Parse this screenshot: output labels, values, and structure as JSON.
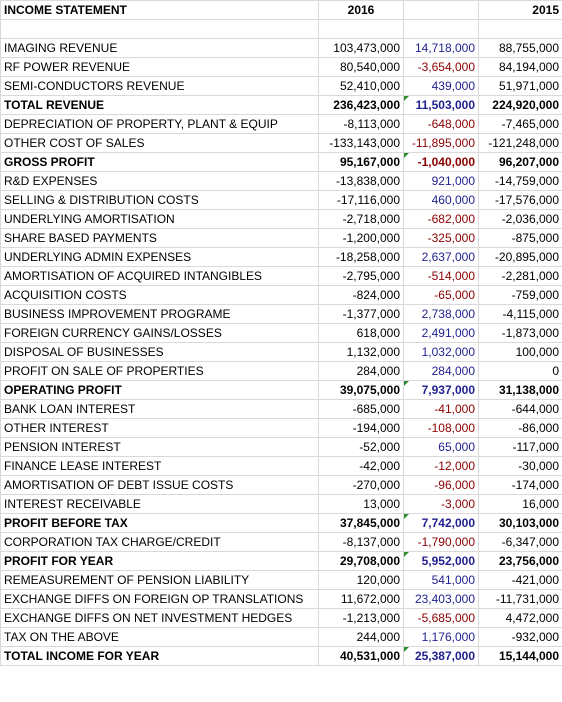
{
  "header": {
    "title": "INCOME STATEMENT",
    "col_2016": "2016",
    "col_var": "",
    "col_2015": "2015"
  },
  "rows": [
    {
      "label": "",
      "v2016": "",
      "var": "",
      "v2015": "",
      "bold": false,
      "sign": ""
    },
    {
      "label": "IMAGING REVENUE",
      "v2016": "103,473,000",
      "var": "14,718,000",
      "v2015": "88,755,000",
      "bold": false,
      "sign": "pos"
    },
    {
      "label": "RF POWER REVENUE",
      "v2016": "80,540,000",
      "var": "-3,654,000",
      "v2015": "84,194,000",
      "bold": false,
      "sign": "neg"
    },
    {
      "label": "SEMI-CONDUCTORS REVENUE",
      "v2016": "52,410,000",
      "var": "439,000",
      "v2015": "51,971,000",
      "bold": false,
      "sign": "pos"
    },
    {
      "label": "TOTAL REVENUE",
      "v2016": "236,423,000",
      "var": "11,503,000",
      "v2015": "224,920,000",
      "bold": true,
      "sign": "pos",
      "flag": true
    },
    {
      "label": "DEPRECIATION OF PROPERTY, PLANT & EQUIP",
      "v2016": "-8,113,000",
      "var": "-648,000",
      "v2015": "-7,465,000",
      "bold": false,
      "sign": "neg"
    },
    {
      "label": "OTHER COST OF SALES",
      "v2016": "-133,143,000",
      "var": "-11,895,000",
      "v2015": "-121,248,000",
      "bold": false,
      "sign": "neg"
    },
    {
      "label": "GROSS PROFIT",
      "v2016": "95,167,000",
      "var": "-1,040,000",
      "v2015": "96,207,000",
      "bold": true,
      "sign": "neg",
      "flag": true
    },
    {
      "label": "R&D EXPENSES",
      "v2016": "-13,838,000",
      "var": "921,000",
      "v2015": "-14,759,000",
      "bold": false,
      "sign": "pos"
    },
    {
      "label": "SELLING & DISTRIBUTION COSTS",
      "v2016": "-17,116,000",
      "var": "460,000",
      "v2015": "-17,576,000",
      "bold": false,
      "sign": "pos"
    },
    {
      "label": "UNDERLYING AMORTISATION",
      "v2016": "-2,718,000",
      "var": "-682,000",
      "v2015": "-2,036,000",
      "bold": false,
      "sign": "neg"
    },
    {
      "label": "SHARE BASED PAYMENTS",
      "v2016": "-1,200,000",
      "var": "-325,000",
      "v2015": "-875,000",
      "bold": false,
      "sign": "neg"
    },
    {
      "label": "UNDERLYING ADMIN EXPENSES",
      "v2016": "-18,258,000",
      "var": "2,637,000",
      "v2015": "-20,895,000",
      "bold": false,
      "sign": "pos"
    },
    {
      "label": "AMORTISATION OF ACQUIRED INTANGIBLES",
      "v2016": "-2,795,000",
      "var": "-514,000",
      "v2015": "-2,281,000",
      "bold": false,
      "sign": "neg"
    },
    {
      "label": "ACQUISITION COSTS",
      "v2016": "-824,000",
      "var": "-65,000",
      "v2015": "-759,000",
      "bold": false,
      "sign": "neg"
    },
    {
      "label": "BUSINESS IMPROVEMENT PROGRAME",
      "v2016": "-1,377,000",
      "var": "2,738,000",
      "v2015": "-4,115,000",
      "bold": false,
      "sign": "pos"
    },
    {
      "label": "FOREIGN CURRENCY GAINS/LOSSES",
      "v2016": "618,000",
      "var": "2,491,000",
      "v2015": "-1,873,000",
      "bold": false,
      "sign": "pos"
    },
    {
      "label": "DISPOSAL OF BUSINESSES",
      "v2016": "1,132,000",
      "var": "1,032,000",
      "v2015": "100,000",
      "bold": false,
      "sign": "pos"
    },
    {
      "label": "PROFIT ON SALE OF PROPERTIES",
      "v2016": "284,000",
      "var": "284,000",
      "v2015": "0",
      "bold": false,
      "sign": "pos"
    },
    {
      "label": "OPERATING PROFIT",
      "v2016": "39,075,000",
      "var": "7,937,000",
      "v2015": "31,138,000",
      "bold": true,
      "sign": "pos",
      "flag": true
    },
    {
      "label": "BANK LOAN INTEREST",
      "v2016": "-685,000",
      "var": "-41,000",
      "v2015": "-644,000",
      "bold": false,
      "sign": "neg"
    },
    {
      "label": "OTHER INTEREST",
      "v2016": "-194,000",
      "var": "-108,000",
      "v2015": "-86,000",
      "bold": false,
      "sign": "neg"
    },
    {
      "label": "PENSION INTEREST",
      "v2016": "-52,000",
      "var": "65,000",
      "v2015": "-117,000",
      "bold": false,
      "sign": "pos"
    },
    {
      "label": "FINANCE LEASE INTEREST",
      "v2016": "-42,000",
      "var": "-12,000",
      "v2015": "-30,000",
      "bold": false,
      "sign": "neg"
    },
    {
      "label": "AMORTISATION OF DEBT ISSUE COSTS",
      "v2016": "-270,000",
      "var": "-96,000",
      "v2015": "-174,000",
      "bold": false,
      "sign": "neg"
    },
    {
      "label": "INTEREST RECEIVABLE",
      "v2016": "13,000",
      "var": "-3,000",
      "v2015": "16,000",
      "bold": false,
      "sign": "neg"
    },
    {
      "label": "PROFIT BEFORE TAX",
      "v2016": "37,845,000",
      "var": "7,742,000",
      "v2015": "30,103,000",
      "bold": true,
      "sign": "pos",
      "flag": true
    },
    {
      "label": "CORPORATION TAX CHARGE/CREDIT",
      "v2016": "-8,137,000",
      "var": "-1,790,000",
      "v2015": "-6,347,000",
      "bold": false,
      "sign": "neg"
    },
    {
      "label": "PROFIT FOR YEAR",
      "v2016": "29,708,000",
      "var": "5,952,000",
      "v2015": "23,756,000",
      "bold": true,
      "sign": "pos",
      "flag": true
    },
    {
      "label": "REMEASUREMENT OF PENSION LIABILITY",
      "v2016": "120,000",
      "var": "541,000",
      "v2015": "-421,000",
      "bold": false,
      "sign": "pos"
    },
    {
      "label": "EXCHANGE DIFFS ON FOREIGN OP TRANSLATIONS",
      "v2016": "11,672,000",
      "var": "23,403,000",
      "v2015": "-11,731,000",
      "bold": false,
      "sign": "pos"
    },
    {
      "label": "EXCHANGE DIFFS ON NET INVESTMENT HEDGES",
      "v2016": "-1,213,000",
      "var": "-5,685,000",
      "v2015": "4,472,000",
      "bold": false,
      "sign": "neg"
    },
    {
      "label": "TAX ON THE ABOVE",
      "v2016": "244,000",
      "var": "1,176,000",
      "v2015": "-932,000",
      "bold": false,
      "sign": "pos"
    },
    {
      "label": "TOTAL INCOME FOR YEAR",
      "v2016": "40,531,000",
      "var": "25,387,000",
      "v2015": "15,144,000",
      "bold": true,
      "sign": "pos",
      "flag": true
    }
  ],
  "colors": {
    "positive_variance": "#1f1f8f",
    "negative_variance": "#8b0000",
    "gridline": "#d9d9d9",
    "flag": "#2e8b2e"
  }
}
